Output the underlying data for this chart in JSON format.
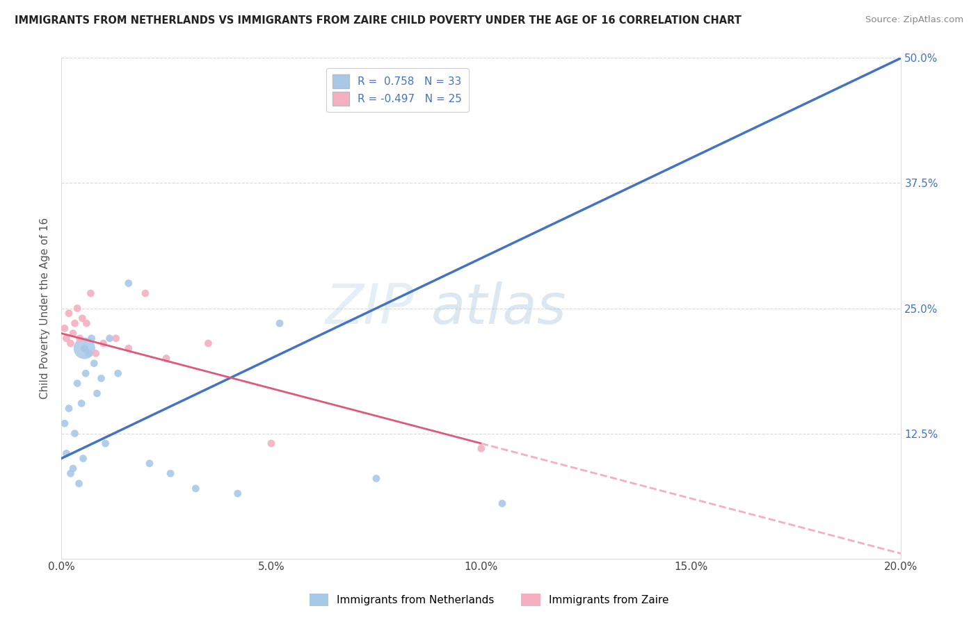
{
  "title": "IMMIGRANTS FROM NETHERLANDS VS IMMIGRANTS FROM ZAIRE CHILD POVERTY UNDER THE AGE OF 16 CORRELATION CHART",
  "source": "Source: ZipAtlas.com",
  "ylabel": "Child Poverty Under the Age of 16",
  "watermark_zip": "ZIP",
  "watermark_atlas": "atlas",
  "xlim": [
    0.0,
    20.0
  ],
  "ylim": [
    0.0,
    50.0
  ],
  "xticks": [
    0.0,
    5.0,
    10.0,
    15.0,
    20.0
  ],
  "yticks": [
    0.0,
    12.5,
    25.0,
    37.5,
    50.0
  ],
  "xtick_labels": [
    "0.0%",
    "",
    "5.0%",
    "",
    "10.0%",
    "",
    "15.0%",
    "",
    "20.0%"
  ],
  "ytick_labels_right": [
    "",
    "12.5%",
    "25.0%",
    "37.5%",
    "50.0%"
  ],
  "legend_netherlands": "Immigrants from Netherlands",
  "legend_zaire": "Immigrants from Zaire",
  "r_netherlands": 0.758,
  "n_netherlands": 33,
  "r_zaire": -0.497,
  "n_zaire": 25,
  "color_netherlands": "#a8c8e8",
  "color_netherlands_line": "#4472c4",
  "color_zaire": "#f4b0c0",
  "color_zaire_line": "#e05878",
  "color_zaire_dashed": "#f4b0c0",
  "background_color": "#ffffff",
  "grid_color": "#c8c8c8",
  "nl_line_x0": 0.0,
  "nl_line_y0": 10.0,
  "nl_line_x1": 20.0,
  "nl_line_y1": 50.0,
  "z_line_x0": 0.0,
  "z_line_y0": 22.5,
  "z_line_x1": 10.0,
  "z_line_y1": 11.5,
  "z_dash_x0": 10.0,
  "z_dash_y0": 11.5,
  "z_dash_x1": 20.0,
  "z_dash_y1": 0.5,
  "netherlands_x": [
    0.08,
    0.12,
    0.18,
    0.22,
    0.28,
    0.32,
    0.38,
    0.42,
    0.48,
    0.52,
    0.58,
    0.65,
    0.72,
    0.78,
    0.85,
    0.55,
    0.95,
    1.05,
    1.15,
    1.35,
    1.6,
    2.1,
    2.6,
    3.2,
    4.2,
    5.2,
    7.5,
    10.5
  ],
  "netherlands_y": [
    13.5,
    10.5,
    15.0,
    8.5,
    9.0,
    12.5,
    17.5,
    7.5,
    15.5,
    10.0,
    18.5,
    20.5,
    22.0,
    19.5,
    16.5,
    21.0,
    18.0,
    11.5,
    22.0,
    18.5,
    27.5,
    9.5,
    8.5,
    7.0,
    6.5,
    23.5,
    8.0,
    5.5
  ],
  "netherlands_sizes": [
    60,
    60,
    60,
    60,
    60,
    60,
    60,
    60,
    60,
    60,
    60,
    60,
    60,
    60,
    60,
    60,
    60,
    60,
    60,
    60,
    60,
    60,
    60,
    60,
    60,
    60,
    60,
    60
  ],
  "netherlands_large_x": 0.55,
  "netherlands_large_y": 21.0,
  "netherlands_large_size": 500,
  "zaire_x": [
    0.08,
    0.12,
    0.18,
    0.22,
    0.28,
    0.32,
    0.38,
    0.44,
    0.5,
    0.6,
    0.7,
    0.82,
    1.0,
    1.3,
    1.6,
    2.0,
    2.5,
    3.5,
    5.0,
    10.0
  ],
  "zaire_y": [
    23.0,
    22.0,
    24.5,
    21.5,
    22.5,
    23.5,
    25.0,
    22.0,
    24.0,
    23.5,
    26.5,
    20.5,
    21.5,
    22.0,
    21.0,
    26.5,
    20.0,
    21.5,
    11.5,
    11.0
  ],
  "zaire_sizes": [
    60,
    60,
    60,
    60,
    60,
    60,
    60,
    60,
    60,
    60,
    60,
    60,
    60,
    60,
    60,
    60,
    60,
    60,
    60,
    60
  ]
}
